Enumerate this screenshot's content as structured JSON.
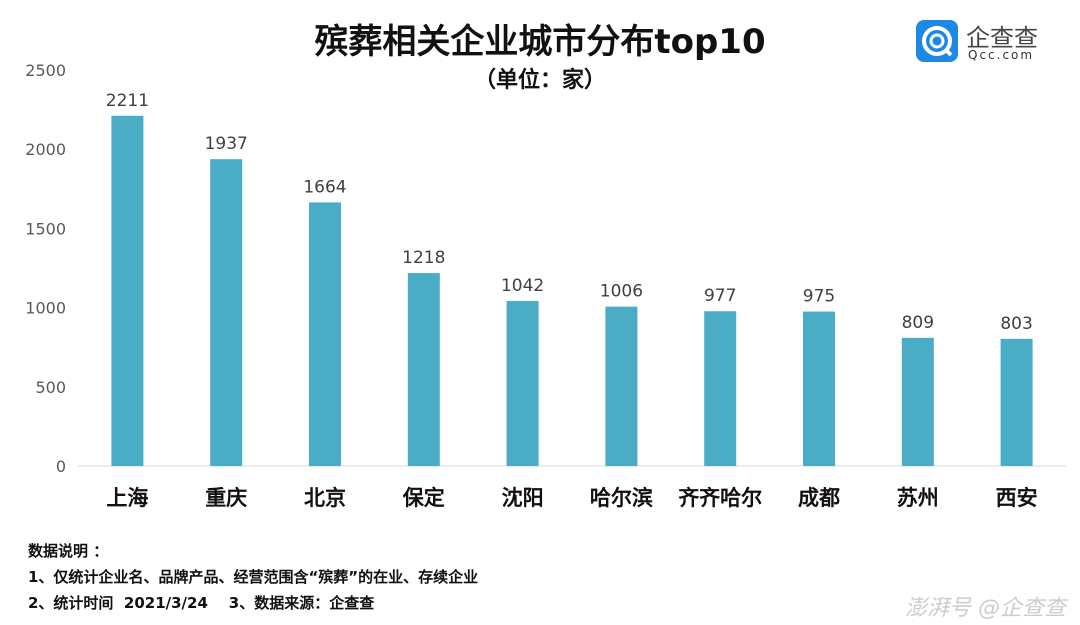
{
  "chart_data": {
    "type": "bar",
    "title": "殡葬相关企业城市分布top10",
    "subtitle": "（单位：家）",
    "categories": [
      "上海",
      "重庆",
      "北京",
      "保定",
      "沈阳",
      "哈尔滨",
      "齐齐哈尔",
      "成都",
      "苏州",
      "西安"
    ],
    "values": [
      2211,
      1937,
      1664,
      1218,
      1042,
      1006,
      977,
      975,
      809,
      803
    ],
    "ylim": [
      0,
      2500
    ],
    "yticks": [
      0,
      500,
      1000,
      1500,
      2000,
      2500
    ],
    "grid": false,
    "bar_color": "#4bacc6",
    "data_labels": true
  },
  "logo": {
    "cn": "企查查",
    "en": "Qcc.com"
  },
  "notes": {
    "heading": "数据说明 ：",
    "line1": "1、仅统计企业名、品牌产品、经营范围含“殡葬”的在业、存续企业",
    "line2": "2、统计时间  2021/3/24    3、数据来源：企查查"
  },
  "watermark": "澎湃号 @企查查"
}
